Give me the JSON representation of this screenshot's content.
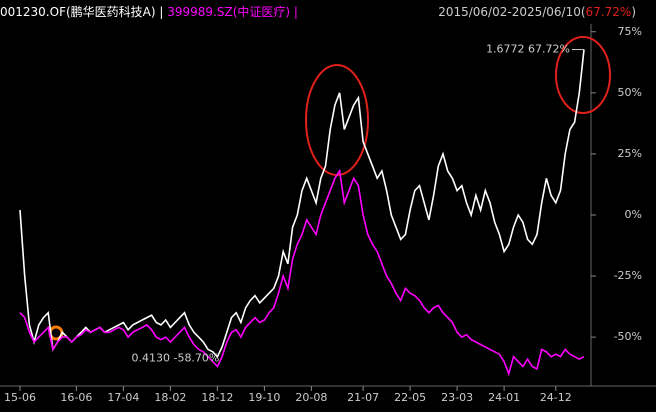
{
  "chart_data": {
    "type": "line",
    "series": [
      {
        "name": "001230.OF(鹏华医药科技A)",
        "color": "#ffffff",
        "values": [
          2,
          -25,
          -45,
          -52,
          -45,
          -42,
          -40,
          -55,
          -52,
          -48,
          -50,
          -52,
          -50,
          -48,
          -46,
          -48,
          -47,
          -46,
          -48,
          -47,
          -46,
          -45,
          -44,
          -47,
          -45,
          -44,
          -43,
          -42,
          -41,
          -44,
          -45,
          -43,
          -46,
          -44,
          -42,
          -40,
          -45,
          -48,
          -50,
          -52,
          -55,
          -56,
          -58,
          -54,
          -48,
          -42,
          -40,
          -44,
          -38,
          -35,
          -33,
          -36,
          -34,
          -32,
          -30,
          -25,
          -15,
          -20,
          -5,
          0,
          10,
          15,
          10,
          5,
          15,
          20,
          35,
          45,
          50,
          35,
          40,
          45,
          48,
          30,
          25,
          20,
          15,
          18,
          10,
          0,
          -5,
          -10,
          -8,
          2,
          10,
          12,
          5,
          -2,
          8,
          20,
          25,
          18,
          15,
          10,
          12,
          5,
          0,
          8,
          2,
          10,
          5,
          -3,
          -8,
          -15,
          -12,
          -5,
          0,
          -3,
          -10,
          -12,
          -8,
          5,
          15,
          8,
          5,
          10,
          25,
          35,
          38,
          50,
          67.72
        ]
      },
      {
        "name": "399989.SZ(中证医疗)",
        "color": "#ff00ff",
        "values": [
          -40,
          -42,
          -48,
          -52,
          -50,
          -48,
          -46,
          -55,
          -52,
          -50,
          -50,
          -52,
          -50,
          -49,
          -47,
          -48,
          -47,
          -46,
          -48,
          -48,
          -47,
          -46,
          -47,
          -50,
          -48,
          -47,
          -46,
          -45,
          -47,
          -50,
          -51,
          -50,
          -52,
          -50,
          -48,
          -46,
          -50,
          -53,
          -55,
          -56,
          -58,
          -60,
          -62,
          -58,
          -52,
          -48,
          -47,
          -50,
          -46,
          -44,
          -42,
          -44,
          -43,
          -40,
          -38,
          -32,
          -25,
          -30,
          -18,
          -12,
          -8,
          -2,
          -5,
          -8,
          0,
          5,
          10,
          15,
          18,
          5,
          10,
          15,
          12,
          0,
          -8,
          -12,
          -15,
          -20,
          -25,
          -28,
          -32,
          -35,
          -30,
          -32,
          -33,
          -35,
          -38,
          -40,
          -38,
          -37,
          -40,
          -42,
          -44,
          -48,
          -50,
          -49,
          -51,
          -52,
          -53,
          -54,
          -55,
          -56,
          -57,
          -60,
          -65,
          -58,
          -60,
          -62,
          -59,
          -62,
          -63,
          -55,
          -56,
          -58,
          -57,
          -58,
          -55,
          -57,
          -58,
          -59,
          -58
        ]
      }
    ],
    "categories": [
      "15-06",
      null,
      null,
      null,
      null,
      null,
      null,
      null,
      null,
      null,
      null,
      null,
      "16-06",
      null,
      null,
      null,
      null,
      null,
      null,
      null,
      null,
      null,
      "17-04",
      null,
      null,
      null,
      null,
      null,
      null,
      null,
      null,
      null,
      "18-02",
      null,
      null,
      null,
      null,
      null,
      null,
      null,
      null,
      null,
      "18-12",
      null,
      null,
      null,
      null,
      null,
      null,
      null,
      null,
      null,
      "19-10",
      null,
      null,
      null,
      null,
      null,
      null,
      null,
      null,
      null,
      "20-08",
      null,
      null,
      null,
      null,
      null,
      null,
      null,
      null,
      null,
      null,
      "21-07",
      null,
      null,
      null,
      null,
      null,
      null,
      null,
      null,
      null,
      "22-05",
      null,
      null,
      null,
      null,
      null,
      null,
      null,
      null,
      null,
      "23-03",
      null,
      null,
      null,
      null,
      null,
      null,
      null,
      null,
      null,
      "24-01",
      null,
      null,
      null,
      null,
      null,
      null,
      null,
      null,
      null,
      null,
      "24-12",
      null,
      null,
      null,
      null,
      null,
      null
    ],
    "ylim": [
      -70,
      88
    ],
    "yticks": [
      {
        "value": 75,
        "label": "75%"
      },
      {
        "value": 50,
        "label": "50%"
      },
      {
        "value": 25,
        "label": "25%"
      },
      {
        "value": 0,
        "label": "0%"
      },
      {
        "value": -25,
        "label": "-25%"
      },
      {
        "value": -50,
        "label": "-50%"
      }
    ],
    "separator": "|",
    "date_range": "2015/06/02-2025/06/10(",
    "period_return": "67.72%",
    "range_close": ")",
    "annotations": [
      "1.6772 67.72%",
      "0.4130 -58.70%"
    ]
  }
}
